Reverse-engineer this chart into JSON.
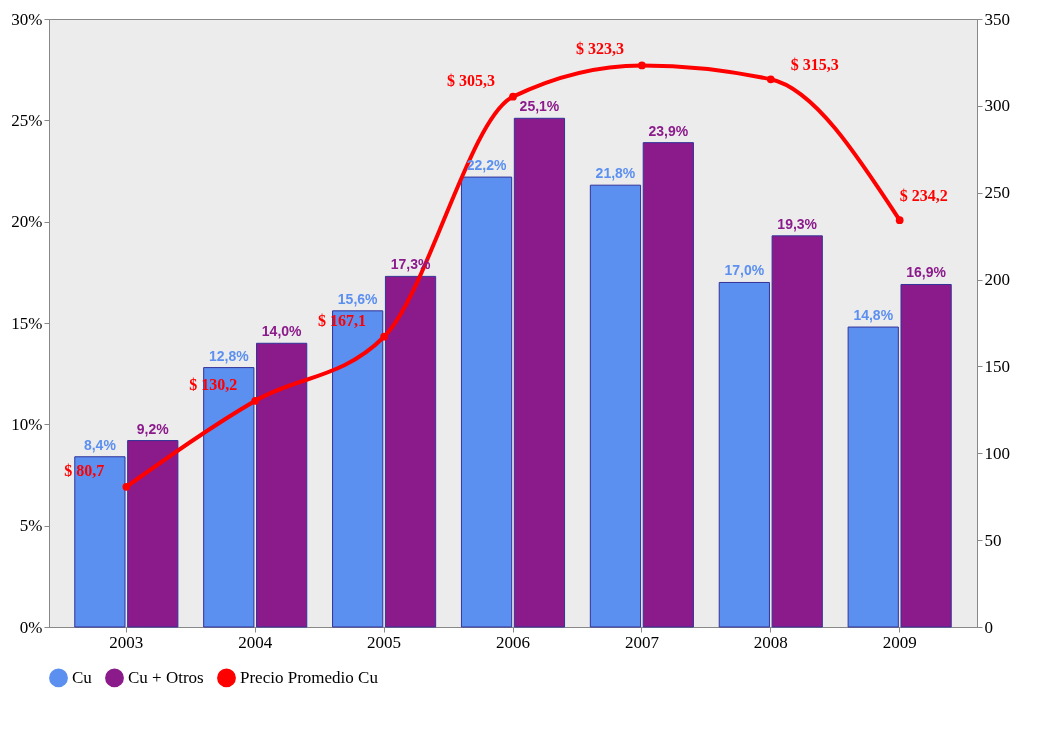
{
  "chart_data": {
    "type": "bar",
    "categories": [
      "2003",
      "2004",
      "2005",
      "2006",
      "2007",
      "2008",
      "2009"
    ],
    "series": [
      {
        "name": "Cu",
        "color": "#5b8ff0",
        "values": [
          8.4,
          12.8,
          15.6,
          22.2,
          21.8,
          17.0,
          14.8
        ],
        "value_labels": [
          "8,4%",
          "12,8%",
          "15,6%",
          "22,2%",
          "21,8%",
          "17,0%",
          "14,8%"
        ]
      },
      {
        "name": "Cu + Otros",
        "color": "#8b1a8b",
        "values": [
          9.2,
          14.0,
          17.3,
          25.1,
          23.9,
          19.3,
          16.9
        ],
        "value_labels": [
          "9,2%",
          "14,0%",
          "17,3%",
          "25,1%",
          "23,9%",
          "19,3%",
          "16,9%"
        ]
      },
      {
        "name": "Precio Promedio Cu",
        "type": "line",
        "axis": "y2",
        "color": "#ff0000",
        "marker": "circle",
        "values": [
          80.7,
          130.2,
          167.1,
          305.3,
          323.3,
          315.3,
          234.2
        ],
        "value_labels": [
          "$ 80,7",
          "$ 130,2",
          "$ 167,1",
          "$ 305,3",
          "$ 323,3",
          "$ 315,3",
          "$ 234,2"
        ]
      }
    ],
    "ylim": [
      0,
      30
    ],
    "yticks": [
      {
        "value": 0,
        "label": "0%"
      },
      {
        "value": 5,
        "label": "5%"
      },
      {
        "value": 10,
        "label": "10%"
      },
      {
        "value": 15,
        "label": "15%"
      },
      {
        "value": 20,
        "label": "20%"
      },
      {
        "value": 25,
        "label": "25%"
      },
      {
        "value": 30,
        "label": "30%"
      }
    ],
    "y2lim": [
      0,
      350
    ],
    "y2ticks": [
      0,
      50,
      100,
      150,
      200,
      250,
      300,
      350
    ],
    "legend": "bottom"
  }
}
